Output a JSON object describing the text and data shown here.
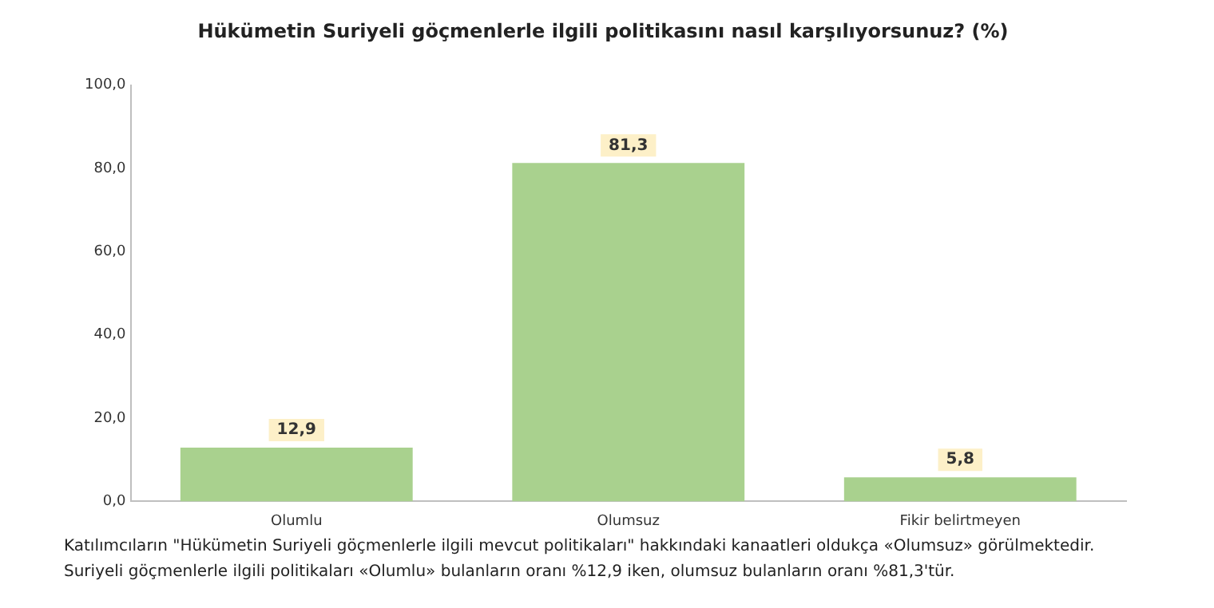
{
  "chart_data": {
    "type": "bar",
    "title": "Hükümetin Suriyeli göçmenlerle ilgili politikasını nasıl karşılıyorsunuz? (%)",
    "categories": [
      "Olumlu",
      "Olumsuz",
      "Fikir belirtmeyen"
    ],
    "values": [
      12.9,
      81.3,
      5.8
    ],
    "value_labels": [
      "12,9",
      "81,3",
      "5,8"
    ],
    "color": "#a9d18e",
    "ylim": [
      0,
      100
    ],
    "yticks": [
      {
        "value": 0,
        "label": "0,0"
      },
      {
        "value": 20,
        "label": "20,0"
      },
      {
        "value": 40,
        "label": "40,0"
      },
      {
        "value": 60,
        "label": "60,0"
      },
      {
        "value": 80,
        "label": "80,0"
      },
      {
        "value": 100,
        "label": "100,0"
      }
    ],
    "grid": false,
    "legend": false,
    "annotations": [
      "Katılımcıların \"Hükümetin Suriyeli göçmenlerle ilgili mevcut politikaları\" hakkındaki kanaatleri oldukça «Olumsuz» görülmektedir.",
      "Suriyeli göçmenlerle ilgili politikaları «Olumlu» bulanların oranı %12,9 iken, olumsuz bulanların oranı %81,3'tür."
    ]
  }
}
